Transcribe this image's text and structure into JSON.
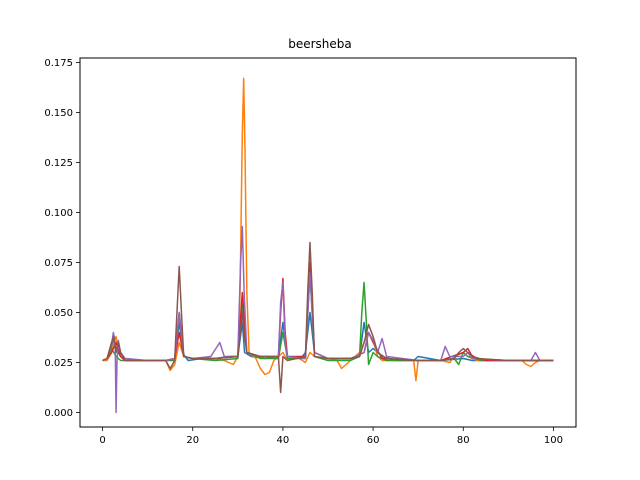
{
  "chart_data": {
    "type": "line",
    "title": "beersheba",
    "xlabel": "",
    "ylabel": "",
    "xlim": [
      -5,
      105
    ],
    "ylim": [
      -0.00725,
      0.17725
    ],
    "x_ticks": [
      0,
      20,
      40,
      60,
      80,
      100
    ],
    "x_tick_labels": [
      "0",
      "20",
      "40",
      "60",
      "80",
      "100"
    ],
    "y_ticks": [
      0.0,
      0.025,
      0.05,
      0.075,
      0.1,
      0.125,
      0.15,
      0.175
    ],
    "y_tick_labels": [
      "0.000",
      "0.025",
      "0.050",
      "0.075",
      "0.100",
      "0.125",
      "0.150",
      "0.175"
    ],
    "grid": false,
    "legend": "none",
    "series": [
      {
        "color": "#1f77b4",
        "points": [
          [
            0,
            0.026
          ],
          [
            1,
            0.027
          ],
          [
            2,
            0.033
          ],
          [
            2.5,
            0.036
          ],
          [
            3,
            0.032
          ],
          [
            4,
            0.028
          ],
          [
            5,
            0.026
          ],
          [
            10,
            0.026
          ],
          [
            14,
            0.026
          ],
          [
            16,
            0.027
          ],
          [
            17,
            0.045
          ],
          [
            18,
            0.029
          ],
          [
            19,
            0.026
          ],
          [
            22,
            0.027
          ],
          [
            25,
            0.027
          ],
          [
            28,
            0.028
          ],
          [
            30,
            0.028
          ],
          [
            31,
            0.045
          ],
          [
            31.5,
            0.03
          ],
          [
            33,
            0.028
          ],
          [
            36,
            0.027
          ],
          [
            39,
            0.028
          ],
          [
            40,
            0.045
          ],
          [
            41,
            0.028
          ],
          [
            44,
            0.027
          ],
          [
            45,
            0.03
          ],
          [
            46,
            0.05
          ],
          [
            47,
            0.03
          ],
          [
            50,
            0.027
          ],
          [
            55,
            0.027
          ],
          [
            57,
            0.028
          ],
          [
            58,
            0.045
          ],
          [
            59,
            0.03
          ],
          [
            60,
            0.032
          ],
          [
            62,
            0.028
          ],
          [
            65,
            0.026
          ],
          [
            69,
            0.026
          ],
          [
            70,
            0.028
          ],
          [
            75,
            0.026
          ],
          [
            80,
            0.027
          ],
          [
            82,
            0.026
          ],
          [
            90,
            0.026
          ],
          [
            96,
            0.026
          ],
          [
            100,
            0.026
          ]
        ]
      },
      {
        "color": "#ff7f0e",
        "points": [
          [
            0,
            0.026
          ],
          [
            1,
            0.026
          ],
          [
            2,
            0.03
          ],
          [
            2.5,
            0.035
          ],
          [
            3,
            0.038
          ],
          [
            3.5,
            0.032
          ],
          [
            4,
            0.03
          ],
          [
            5,
            0.026
          ],
          [
            10,
            0.026
          ],
          [
            14,
            0.026
          ],
          [
            15,
            0.021
          ],
          [
            16,
            0.024
          ],
          [
            17,
            0.035
          ],
          [
            18,
            0.028
          ],
          [
            20,
            0.027
          ],
          [
            25,
            0.027
          ],
          [
            27,
            0.026
          ],
          [
            29,
            0.024
          ],
          [
            30,
            0.028
          ],
          [
            30.5,
            0.06
          ],
          [
            31,
            0.14
          ],
          [
            31.3,
            0.167
          ],
          [
            31.6,
            0.13
          ],
          [
            32,
            0.06
          ],
          [
            32.5,
            0.03
          ],
          [
            34,
            0.027
          ],
          [
            35,
            0.022
          ],
          [
            36,
            0.019
          ],
          [
            37,
            0.02
          ],
          [
            38,
            0.026
          ],
          [
            39,
            0.028
          ],
          [
            40,
            0.03
          ],
          [
            41,
            0.026
          ],
          [
            43,
            0.028
          ],
          [
            45,
            0.025
          ],
          [
            46,
            0.03
          ],
          [
            47,
            0.028
          ],
          [
            50,
            0.027
          ],
          [
            52,
            0.026
          ],
          [
            53,
            0.022
          ],
          [
            54,
            0.024
          ],
          [
            56,
            0.028
          ],
          [
            57,
            0.03
          ],
          [
            58,
            0.035
          ],
          [
            59,
            0.04
          ],
          [
            60,
            0.036
          ],
          [
            61,
            0.028
          ],
          [
            62,
            0.026
          ],
          [
            65,
            0.026
          ],
          [
            69,
            0.026
          ],
          [
            69.5,
            0.016
          ],
          [
            70,
            0.026
          ],
          [
            75,
            0.026
          ],
          [
            77,
            0.025
          ],
          [
            78,
            0.028
          ],
          [
            80,
            0.03
          ],
          [
            81,
            0.028
          ],
          [
            83,
            0.026
          ],
          [
            90,
            0.026
          ],
          [
            93,
            0.026
          ],
          [
            94,
            0.024
          ],
          [
            95,
            0.023
          ],
          [
            96,
            0.025
          ],
          [
            97,
            0.026
          ],
          [
            100,
            0.026
          ]
        ]
      },
      {
        "color": "#2ca02c",
        "points": [
          [
            0,
            0.026
          ],
          [
            1,
            0.027
          ],
          [
            2,
            0.032
          ],
          [
            2.5,
            0.03
          ],
          [
            3,
            0.028
          ],
          [
            4,
            0.026
          ],
          [
            10,
            0.026
          ],
          [
            14,
            0.026
          ],
          [
            16,
            0.026
          ],
          [
            17,
            0.05
          ],
          [
            18,
            0.028
          ],
          [
            20,
            0.027
          ],
          [
            25,
            0.026
          ],
          [
            30,
            0.027
          ],
          [
            31,
            0.055
          ],
          [
            32,
            0.03
          ],
          [
            35,
            0.027
          ],
          [
            39,
            0.027
          ],
          [
            40,
            0.04
          ],
          [
            41,
            0.027
          ],
          [
            45,
            0.027
          ],
          [
            46,
            0.07
          ],
          [
            47,
            0.028
          ],
          [
            50,
            0.026
          ],
          [
            55,
            0.026
          ],
          [
            57,
            0.028
          ],
          [
            57.5,
            0.05
          ],
          [
            58,
            0.065
          ],
          [
            58.5,
            0.045
          ],
          [
            59,
            0.024
          ],
          [
            60,
            0.03
          ],
          [
            61,
            0.028
          ],
          [
            63,
            0.026
          ],
          [
            70,
            0.026
          ],
          [
            75,
            0.026
          ],
          [
            78,
            0.027
          ],
          [
            79,
            0.024
          ],
          [
            80,
            0.03
          ],
          [
            81,
            0.028
          ],
          [
            84,
            0.026
          ],
          [
            90,
            0.026
          ],
          [
            100,
            0.026
          ]
        ]
      },
      {
        "color": "#d62728",
        "points": [
          [
            0,
            0.026
          ],
          [
            1,
            0.027
          ],
          [
            2,
            0.03
          ],
          [
            3,
            0.035
          ],
          [
            4,
            0.028
          ],
          [
            5,
            0.026
          ],
          [
            10,
            0.026
          ],
          [
            14,
            0.026
          ],
          [
            16,
            0.027
          ],
          [
            17,
            0.04
          ],
          [
            18,
            0.028
          ],
          [
            20,
            0.027
          ],
          [
            25,
            0.027
          ],
          [
            30,
            0.028
          ],
          [
            31,
            0.06
          ],
          [
            32,
            0.03
          ],
          [
            35,
            0.028
          ],
          [
            39,
            0.028
          ],
          [
            39.5,
            0.05
          ],
          [
            40,
            0.067
          ],
          [
            40.5,
            0.04
          ],
          [
            41,
            0.028
          ],
          [
            45,
            0.028
          ],
          [
            46,
            0.075
          ],
          [
            47,
            0.03
          ],
          [
            50,
            0.027
          ],
          [
            55,
            0.027
          ],
          [
            58,
            0.03
          ],
          [
            59,
            0.04
          ],
          [
            60,
            0.035
          ],
          [
            62,
            0.027
          ],
          [
            70,
            0.026
          ],
          [
            75,
            0.026
          ],
          [
            80,
            0.03
          ],
          [
            81,
            0.032
          ],
          [
            82,
            0.028
          ],
          [
            85,
            0.026
          ],
          [
            90,
            0.026
          ],
          [
            100,
            0.026
          ]
        ]
      },
      {
        "color": "#9467bd",
        "points": [
          [
            0,
            0.026
          ],
          [
            1,
            0.027
          ],
          [
            2,
            0.034
          ],
          [
            2.4,
            0.04
          ],
          [
            2.8,
            0.035
          ],
          [
            3,
            0.0
          ],
          [
            3.2,
            0.025
          ],
          [
            3.5,
            0.036
          ],
          [
            4,
            0.03
          ],
          [
            5,
            0.027
          ],
          [
            10,
            0.026
          ],
          [
            14,
            0.026
          ],
          [
            16,
            0.027
          ],
          [
            17,
            0.05
          ],
          [
            18,
            0.028
          ],
          [
            20,
            0.027
          ],
          [
            24,
            0.028
          ],
          [
            26,
            0.035
          ],
          [
            27,
            0.028
          ],
          [
            30,
            0.028
          ],
          [
            30.6,
            0.074
          ],
          [
            31,
            0.093
          ],
          [
            31.4,
            0.06
          ],
          [
            32,
            0.03
          ],
          [
            35,
            0.028
          ],
          [
            39,
            0.028
          ],
          [
            39.5,
            0.055
          ],
          [
            40,
            0.065
          ],
          [
            40.5,
            0.035
          ],
          [
            41,
            0.028
          ],
          [
            45,
            0.027
          ],
          [
            46,
            0.07
          ],
          [
            47,
            0.03
          ],
          [
            50,
            0.027
          ],
          [
            55,
            0.027
          ],
          [
            58,
            0.03
          ],
          [
            59,
            0.04
          ],
          [
            60,
            0.036
          ],
          [
            61,
            0.03
          ],
          [
            62,
            0.037
          ],
          [
            63,
            0.028
          ],
          [
            70,
            0.026
          ],
          [
            75,
            0.026
          ],
          [
            76,
            0.033
          ],
          [
            77,
            0.028
          ],
          [
            80,
            0.028
          ],
          [
            81,
            0.03
          ],
          [
            82,
            0.027
          ],
          [
            90,
            0.026
          ],
          [
            95,
            0.026
          ],
          [
            96,
            0.03
          ],
          [
            97,
            0.026
          ],
          [
            100,
            0.026
          ]
        ]
      },
      {
        "color": "#8c564b",
        "points": [
          [
            0,
            0.026
          ],
          [
            1,
            0.027
          ],
          [
            2,
            0.035
          ],
          [
            2.5,
            0.038
          ],
          [
            3,
            0.03
          ],
          [
            3.5,
            0.035
          ],
          [
            4,
            0.03
          ],
          [
            5,
            0.026
          ],
          [
            10,
            0.026
          ],
          [
            14,
            0.026
          ],
          [
            15,
            0.022
          ],
          [
            16,
            0.026
          ],
          [
            16.5,
            0.05
          ],
          [
            17,
            0.073
          ],
          [
            17.5,
            0.05
          ],
          [
            18,
            0.028
          ],
          [
            20,
            0.027
          ],
          [
            25,
            0.027
          ],
          [
            30,
            0.028
          ],
          [
            31,
            0.05
          ],
          [
            31.5,
            0.038
          ],
          [
            32,
            0.03
          ],
          [
            35,
            0.028
          ],
          [
            39,
            0.028
          ],
          [
            39.5,
            0.01
          ],
          [
            40,
            0.028
          ],
          [
            41,
            0.026
          ],
          [
            43,
            0.027
          ],
          [
            45,
            0.028
          ],
          [
            45.5,
            0.06
          ],
          [
            46,
            0.085
          ],
          [
            46.5,
            0.06
          ],
          [
            47,
            0.028
          ],
          [
            50,
            0.027
          ],
          [
            55,
            0.027
          ],
          [
            57,
            0.028
          ],
          [
            58,
            0.035
          ],
          [
            59,
            0.044
          ],
          [
            60,
            0.038
          ],
          [
            61,
            0.03
          ],
          [
            63,
            0.027
          ],
          [
            70,
            0.026
          ],
          [
            75,
            0.026
          ],
          [
            78,
            0.027
          ],
          [
            79,
            0.03
          ],
          [
            80,
            0.032
          ],
          [
            81,
            0.03
          ],
          [
            83,
            0.027
          ],
          [
            90,
            0.026
          ],
          [
            100,
            0.026
          ]
        ]
      }
    ]
  }
}
